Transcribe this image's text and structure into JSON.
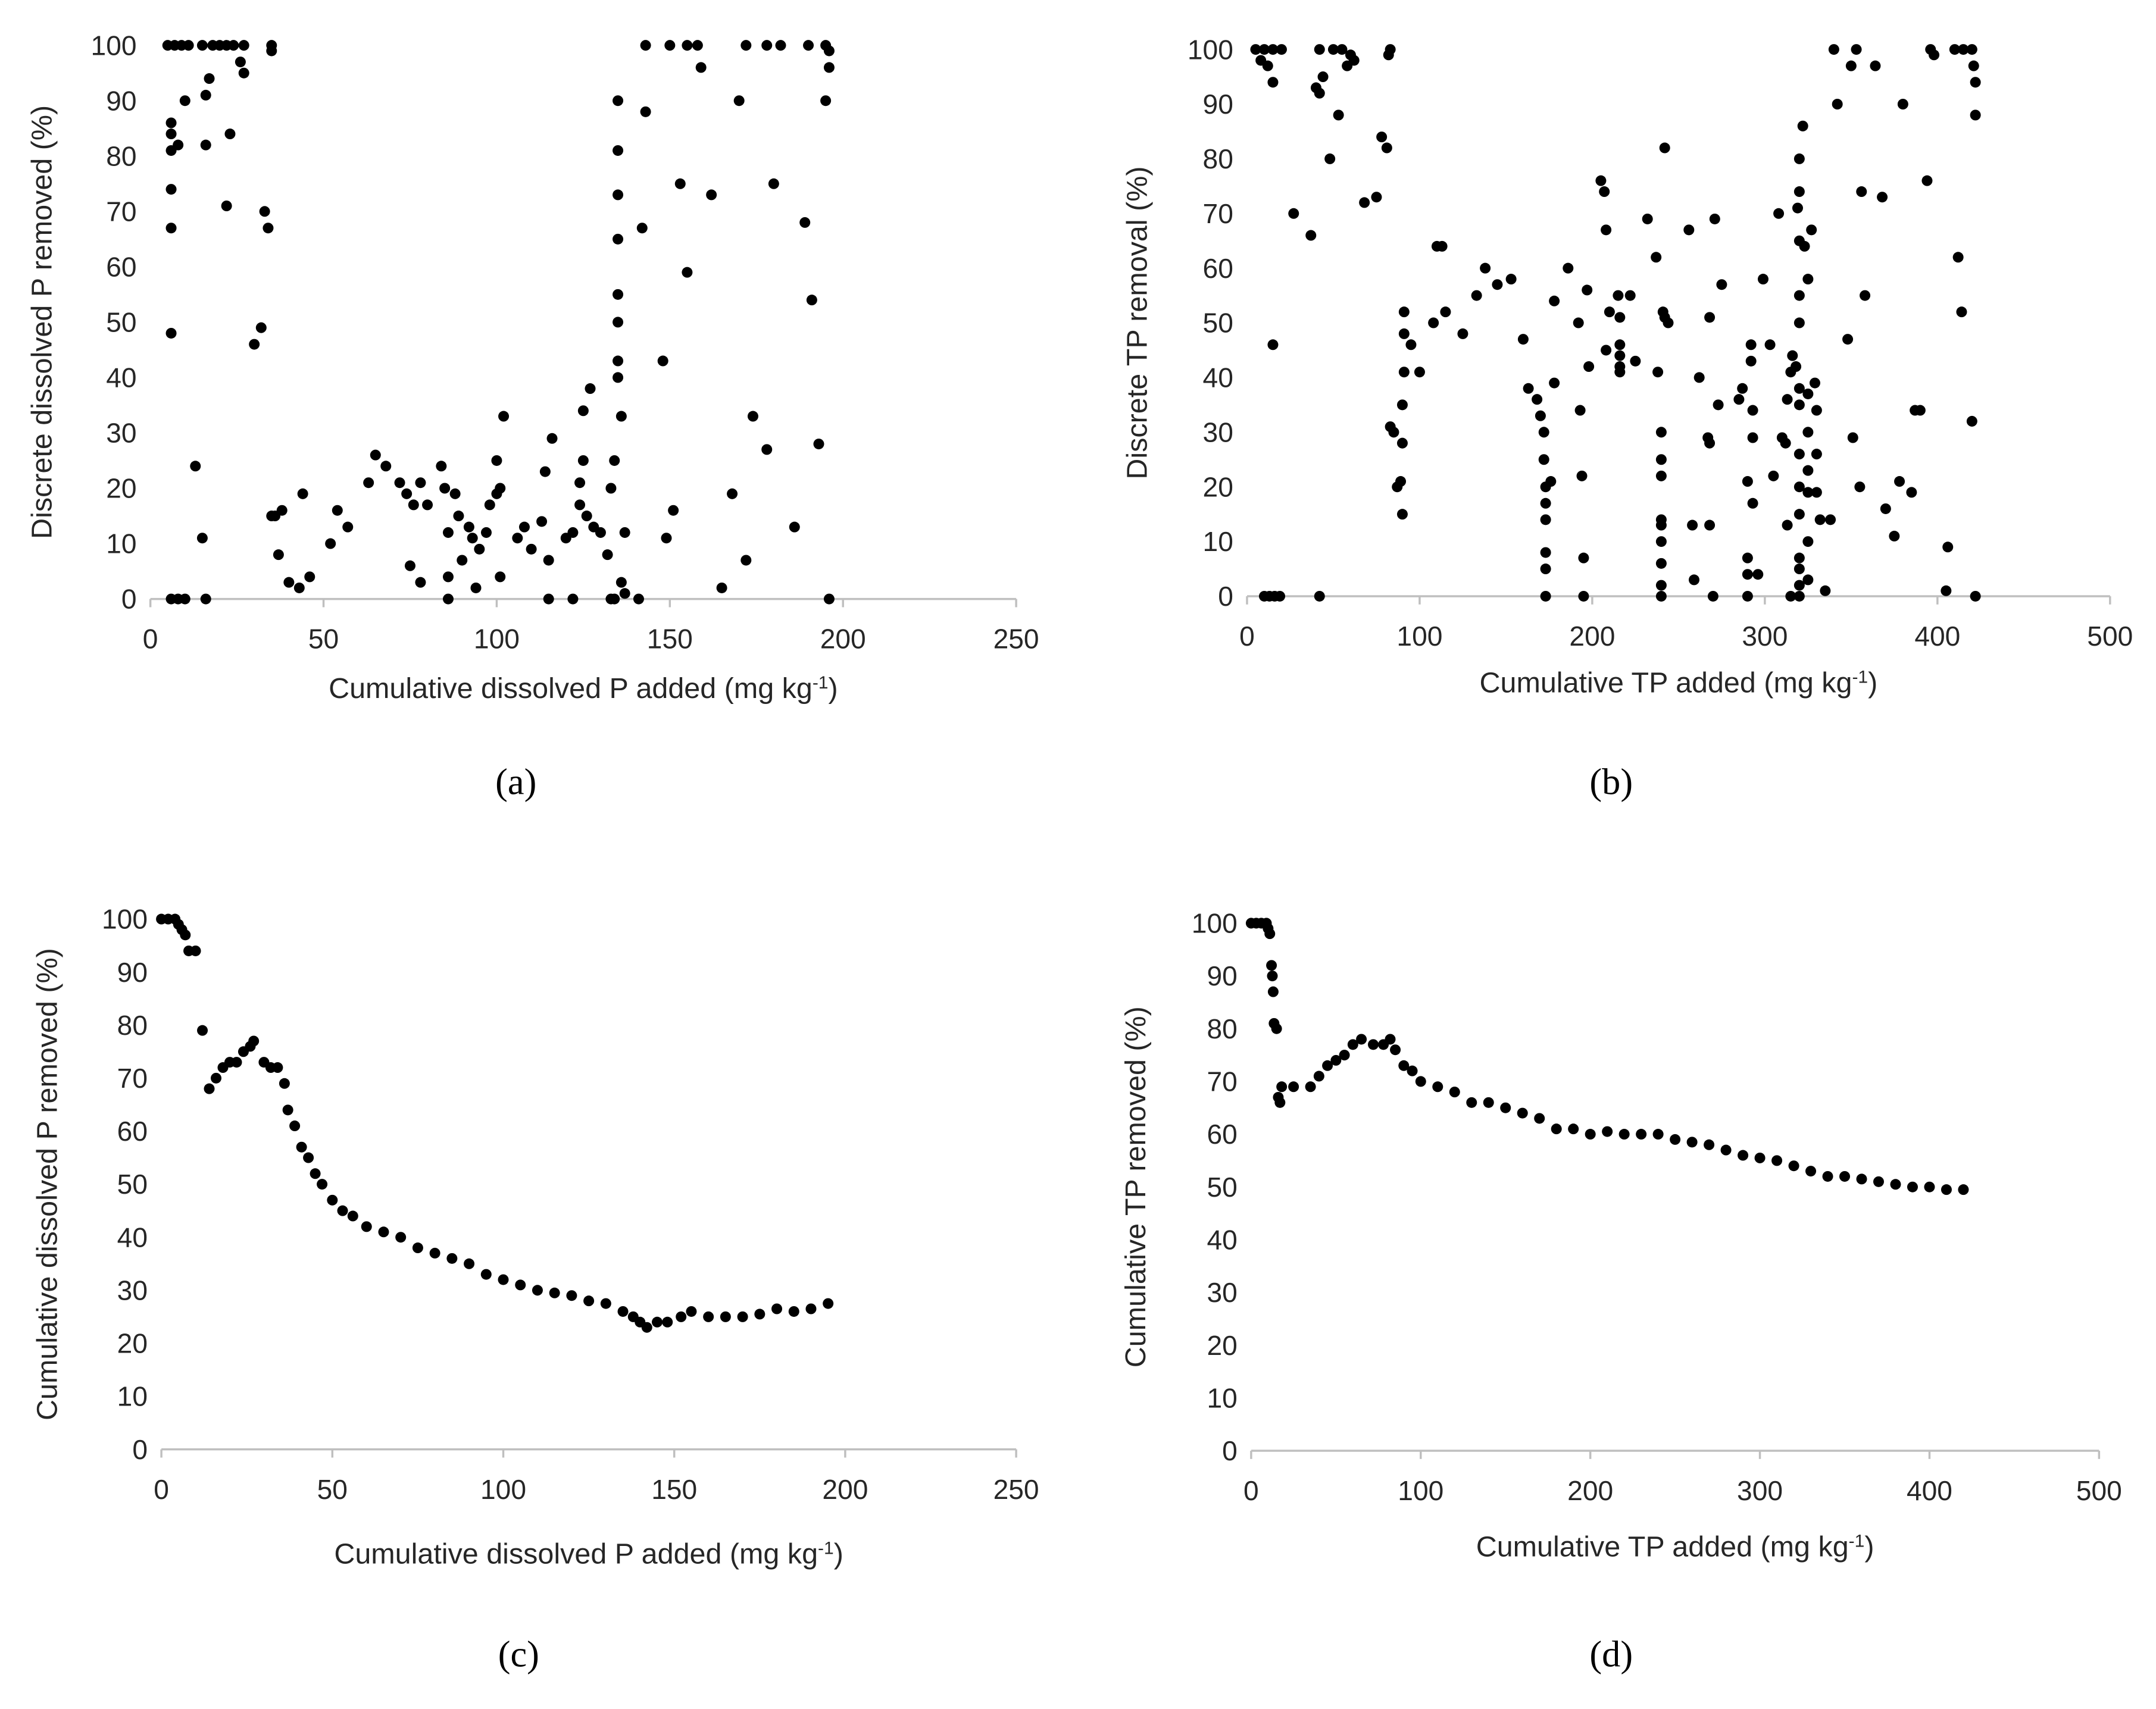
{
  "chart_data": [
    {
      "type": "scatter",
      "panel": "(a)",
      "x_label": [
        "Cumulative dissolved P added (mg kg",
        "-1",
        ")"
      ],
      "y_label": "Discrete dissolved P removed (%)",
      "color": "#000000",
      "xlim": [
        0,
        250
      ],
      "xticks": [
        0,
        50,
        100,
        150,
        200,
        250
      ],
      "ylim": [
        0,
        100
      ],
      "yticks": [
        0,
        10,
        20,
        30,
        40,
        50,
        60,
        70,
        80,
        90,
        100
      ],
      "x": [
        5,
        7,
        9,
        11,
        15,
        18,
        20,
        22,
        24,
        27,
        35,
        143,
        150,
        155,
        158,
        172,
        178,
        182,
        190,
        195,
        196,
        196,
        6,
        6,
        6,
        8,
        6,
        6,
        6,
        10,
        16,
        17,
        16,
        22,
        23,
        26,
        27,
        30,
        32,
        33,
        34,
        35,
        13,
        15,
        16,
        6,
        8,
        10,
        35,
        36,
        37,
        38,
        40,
        43,
        44,
        46,
        52,
        54,
        57,
        63,
        65,
        68,
        72,
        74,
        75,
        76,
        78,
        78,
        80,
        84,
        85,
        86,
        86,
        86,
        88,
        89,
        90,
        92,
        93,
        94,
        95,
        97,
        98,
        100,
        100,
        101,
        101,
        102,
        106,
        108,
        110,
        113,
        114,
        115,
        115,
        116,
        120,
        122,
        122,
        124,
        124,
        125,
        125,
        126,
        127,
        128,
        130,
        132,
        133,
        133,
        134,
        134,
        135,
        135,
        135,
        135,
        135,
        135,
        135,
        135,
        136,
        136,
        137,
        137,
        141,
        142,
        143,
        148,
        149,
        151,
        153,
        155,
        159,
        162,
        165,
        168,
        170,
        172,
        174,
        178,
        180,
        186,
        189,
        191,
        193,
        195,
        196
      ],
      "values": [
        100,
        100,
        100,
        100,
        100,
        100,
        100,
        100,
        100,
        100,
        100,
        100,
        100,
        100,
        100,
        100,
        100,
        100,
        100,
        100,
        99,
        96,
        86,
        84,
        81,
        82,
        74,
        67,
        48,
        90,
        91,
        94,
        82,
        71,
        84,
        97,
        95,
        46,
        49,
        70,
        67,
        99,
        24,
        11,
        0,
        0,
        0,
        0,
        15,
        15,
        8,
        16,
        3,
        2,
        19,
        4,
        10,
        16,
        13,
        21,
        26,
        24,
        21,
        19,
        6,
        17,
        3,
        21,
        17,
        24,
        20,
        0,
        12,
        4,
        19,
        15,
        7,
        13,
        11,
        2,
        9,
        12,
        17,
        25,
        19,
        4,
        20,
        33,
        11,
        13,
        9,
        14,
        23,
        0,
        7,
        29,
        11,
        12,
        0,
        17,
        21,
        25,
        34,
        15,
        38,
        13,
        12,
        8,
        0,
        20,
        0,
        25,
        90,
        81,
        73,
        65,
        55,
        50,
        43,
        40,
        3,
        33,
        12,
        1,
        0,
        67,
        88,
        43,
        11,
        16,
        75,
        59,
        96,
        73,
        2,
        19,
        90,
        7,
        33,
        27,
        75,
        13,
        68,
        54,
        28,
        90,
        0
      ]
    },
    {
      "type": "scatter",
      "panel": "(b)",
      "x_label": [
        "Cumulative TP added (mg kg",
        "-1",
        ")"
      ],
      "y_label": "Discrete TP removal (%)",
      "color": "#000000",
      "xlim": [
        0,
        500
      ],
      "xticks": [
        0,
        100,
        200,
        300,
        400,
        500
      ],
      "ylim": [
        0,
        100
      ],
      "yticks": [
        0,
        10,
        20,
        30,
        40,
        50,
        60,
        70,
        80,
        90,
        100
      ],
      "x": [
        5,
        10,
        15,
        20,
        8,
        12,
        15,
        15,
        10,
        13,
        16,
        19,
        42,
        27,
        37,
        40,
        42,
        44,
        42,
        50,
        55,
        58,
        60,
        62,
        48,
        53,
        68,
        75,
        78,
        81,
        82,
        83,
        83,
        85,
        87,
        89,
        90,
        90,
        90,
        91,
        91,
        91,
        95,
        100,
        108,
        110,
        113,
        115,
        125,
        133,
        138,
        145,
        153,
        160,
        163,
        168,
        170,
        172,
        172,
        173,
        173,
        173,
        173,
        173,
        173,
        176,
        178,
        178,
        186,
        192,
        193,
        194,
        195,
        195,
        197,
        198,
        205,
        207,
        208,
        208,
        210,
        215,
        216,
        216,
        216,
        216,
        216,
        222,
        225,
        232,
        237,
        238,
        240,
        240,
        240,
        240,
        240,
        240,
        240,
        240,
        240,
        241,
        242,
        242,
        244,
        256,
        258,
        259,
        262,
        267,
        268,
        268,
        268,
        270,
        271,
        273,
        275,
        285,
        287,
        290,
        290,
        290,
        290,
        292,
        292,
        293,
        293,
        293,
        296,
        299,
        303,
        305,
        308,
        310,
        312,
        313,
        313,
        315,
        315,
        316,
        318,
        319,
        320,
        320,
        320,
        320,
        320,
        320,
        320,
        320,
        320,
        320,
        320,
        320,
        320,
        320,
        322,
        323,
        325,
        325,
        325,
        325,
        325,
        325,
        325,
        327,
        329,
        330,
        330,
        330,
        332,
        335,
        338,
        340,
        342,
        348,
        350,
        351,
        353,
        355,
        356,
        358,
        364,
        368,
        370,
        375,
        378,
        380,
        385,
        387,
        390,
        394,
        396,
        398,
        405,
        406,
        410,
        412,
        414,
        415,
        420,
        420,
        421,
        422,
        422,
        422
      ],
      "values": [
        100,
        100,
        100,
        100,
        98,
        97,
        94,
        46,
        0,
        0,
        0,
        0,
        0,
        70,
        66,
        93,
        92,
        95,
        100,
        100,
        100,
        97,
        99,
        98,
        80,
        88,
        72,
        73,
        84,
        82,
        99,
        100,
        31,
        30,
        20,
        21,
        15,
        28,
        35,
        41,
        48,
        52,
        46,
        41,
        50,
        64,
        64,
        52,
        48,
        55,
        60,
        57,
        58,
        47,
        38,
        36,
        33,
        30,
        25,
        20,
        17,
        14,
        8,
        5,
        0,
        21,
        54,
        39,
        60,
        50,
        34,
        22,
        7,
        0,
        56,
        42,
        76,
        74,
        67,
        45,
        52,
        55,
        51,
        46,
        44,
        42,
        41,
        55,
        43,
        69,
        62,
        41,
        30,
        25,
        22,
        14,
        13,
        10,
        6,
        2,
        0,
        52,
        51,
        82,
        50,
        67,
        13,
        3,
        40,
        29,
        28,
        51,
        13,
        0,
        69,
        35,
        57,
        36,
        38,
        21,
        7,
        4,
        0,
        46,
        43,
        34,
        29,
        17,
        4,
        58,
        46,
        22,
        70,
        29,
        28,
        13,
        36,
        0,
        41,
        44,
        42,
        71,
        80,
        74,
        65,
        55,
        50,
        38,
        35,
        26,
        20,
        15,
        7,
        5,
        2,
        0,
        86,
        64,
        58,
        37,
        30,
        23,
        19,
        10,
        3,
        67,
        39,
        34,
        26,
        19,
        14,
        1,
        14,
        100,
        90,
        47,
        97,
        29,
        100,
        20,
        74,
        55,
        97,
        73,
        16,
        11,
        21,
        90,
        19,
        34,
        34,
        76,
        100,
        99,
        1,
        9,
        100,
        62,
        52,
        100,
        100,
        32,
        97,
        94,
        88,
        0
      ]
    },
    {
      "type": "scatter",
      "panel": "(c)",
      "x_label": [
        "Cumulative dissolved P added (mg kg",
        "-1",
        ")"
      ],
      "y_label": "Cumulative dissolved P removed (%)",
      "color": "#000000",
      "xlim": [
        0,
        250
      ],
      "xticks": [
        0,
        50,
        100,
        150,
        200,
        250
      ],
      "ylim": [
        0,
        100
      ],
      "yticks": [
        0,
        10,
        20,
        30,
        40,
        50,
        60,
        70,
        80,
        90,
        100
      ],
      "x": [
        0,
        2,
        4,
        5,
        6,
        7,
        8,
        10,
        12,
        14,
        16,
        18,
        20,
        22,
        24,
        26,
        27,
        30,
        32,
        34,
        36,
        37,
        39,
        41,
        43,
        45,
        47,
        50,
        53,
        56,
        60,
        65,
        70,
        75,
        80,
        85,
        90,
        95,
        100,
        105,
        110,
        115,
        120,
        125,
        130,
        135,
        138,
        140,
        142,
        145,
        148,
        152,
        155,
        160,
        165,
        170,
        175,
        180,
        185,
        190,
        195
      ],
      "values": [
        100,
        100,
        100,
        99,
        98,
        97,
        94,
        94,
        79,
        68,
        70,
        72,
        73,
        73,
        75,
        76,
        77,
        73,
        72,
        72,
        69,
        64,
        61,
        57,
        55,
        52,
        50,
        47,
        45,
        44,
        42,
        41,
        40,
        38,
        37,
        36,
        35,
        33,
        32,
        31,
        30,
        29.5,
        29,
        28,
        27.5,
        26,
        25,
        24,
        23,
        24,
        24,
        25,
        26,
        25,
        25,
        25,
        25.5,
        26.5,
        26,
        26.5,
        27.5
      ]
    },
    {
      "type": "scatter",
      "panel": "(d)",
      "x_label": [
        "Cumulative TP added (mg kg",
        "-1",
        ")"
      ],
      "y_label": "Cumulative TP removed (%)",
      "color": "#000000",
      "xlim": [
        0,
        500
      ],
      "xticks": [
        0,
        100,
        200,
        300,
        400,
        500
      ],
      "ylim": [
        0,
        100
      ],
      "yticks": [
        0,
        10,
        20,
        30,
        40,
        50,
        60,
        70,
        80,
        90,
        100
      ],
      "x": [
        0,
        3,
        6,
        9,
        10,
        11,
        12,
        12.5,
        13,
        13.5,
        15,
        16,
        17,
        18,
        25,
        35,
        40,
        45,
        50,
        55,
        60,
        65,
        72,
        78,
        82,
        85,
        90,
        95,
        100,
        110,
        120,
        130,
        140,
        150,
        160,
        170,
        180,
        190,
        200,
        210,
        220,
        230,
        240,
        250,
        260,
        270,
        280,
        290,
        300,
        310,
        320,
        330,
        340,
        350,
        360,
        370,
        380,
        390,
        400,
        410,
        420
      ],
      "values": [
        100,
        100,
        100,
        100,
        99,
        98,
        92,
        90,
        87,
        81,
        80,
        67,
        66,
        69,
        69,
        69,
        71,
        73,
        74,
        75,
        77,
        78,
        77,
        77,
        78,
        76,
        73,
        72,
        70,
        69,
        68,
        66,
        66,
        65,
        64,
        63,
        61,
        61,
        60,
        60.5,
        60,
        60,
        60,
        59,
        58.5,
        58,
        57,
        56,
        55.5,
        55,
        54,
        53,
        52,
        52,
        51.5,
        51,
        50.5,
        50,
        50,
        49.5,
        49.5
      ]
    }
  ]
}
